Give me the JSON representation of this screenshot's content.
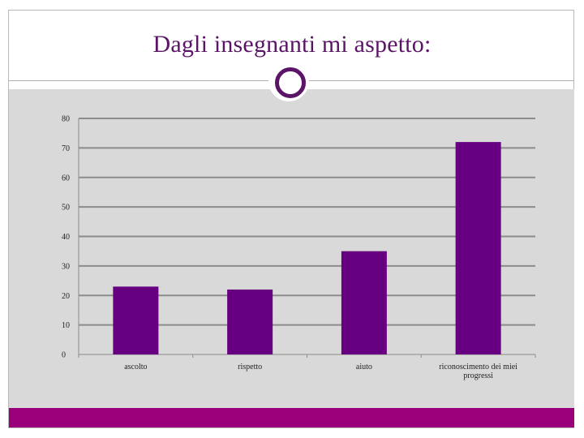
{
  "slide": {
    "title": "Dagli insegnanti mi aspetto:"
  },
  "colors": {
    "bar": "#660080",
    "title": "#5b1566",
    "accent": "#9b007b",
    "plot_background": "#d9d9d9",
    "gridline": "#8c8c8c"
  },
  "chart_data": {
    "type": "bar",
    "title": "",
    "xlabel": "",
    "ylabel": "",
    "categories": [
      "ascolto",
      "rispetto",
      "aiuto",
      "riconoscimento dei miei progressi"
    ],
    "category_lines": [
      [
        "ascolto"
      ],
      [
        "rispetto"
      ],
      [
        "aiuto"
      ],
      [
        "riconoscimento dei miei",
        "progressi"
      ]
    ],
    "values": [
      23,
      22,
      35,
      72
    ],
    "ylim": [
      0,
      80
    ],
    "yticks": [
      "0",
      "10",
      "20",
      "30",
      "40",
      "50",
      "60",
      "70",
      "80"
    ],
    "grid": true,
    "legend": "none"
  }
}
